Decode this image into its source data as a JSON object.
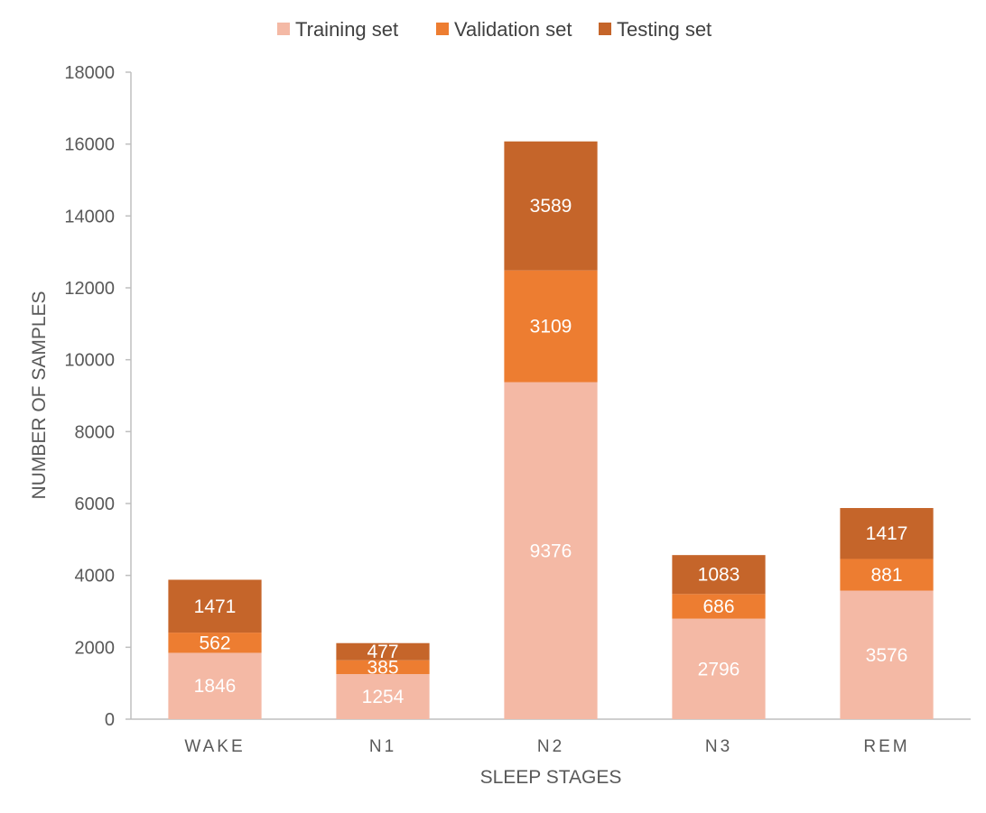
{
  "chart_data": {
    "type": "bar",
    "stacked": true,
    "categories": [
      "WAKE",
      "N1",
      "N2",
      "N3",
      "REM"
    ],
    "series": [
      {
        "name": "Training set",
        "color": "#F4B9A5",
        "values": [
          1846,
          1254,
          9376,
          2796,
          3576
        ]
      },
      {
        "name": "Validation set",
        "color": "#ED7D31",
        "values": [
          562,
          385,
          3109,
          686,
          881
        ]
      },
      {
        "name": "Testing set",
        "color": "#C5652A",
        "values": [
          1471,
          477,
          3589,
          1083,
          1417
        ]
      }
    ],
    "xlabel": "SLEEP STAGES",
    "ylabel": "NUMBER OF SAMPLES",
    "ylim": [
      0,
      18000
    ],
    "yticks": [
      0,
      2000,
      4000,
      6000,
      8000,
      10000,
      12000,
      14000,
      16000,
      18000
    ],
    "grid": false,
    "legend_position": "top-center",
    "data_labels": true
  }
}
